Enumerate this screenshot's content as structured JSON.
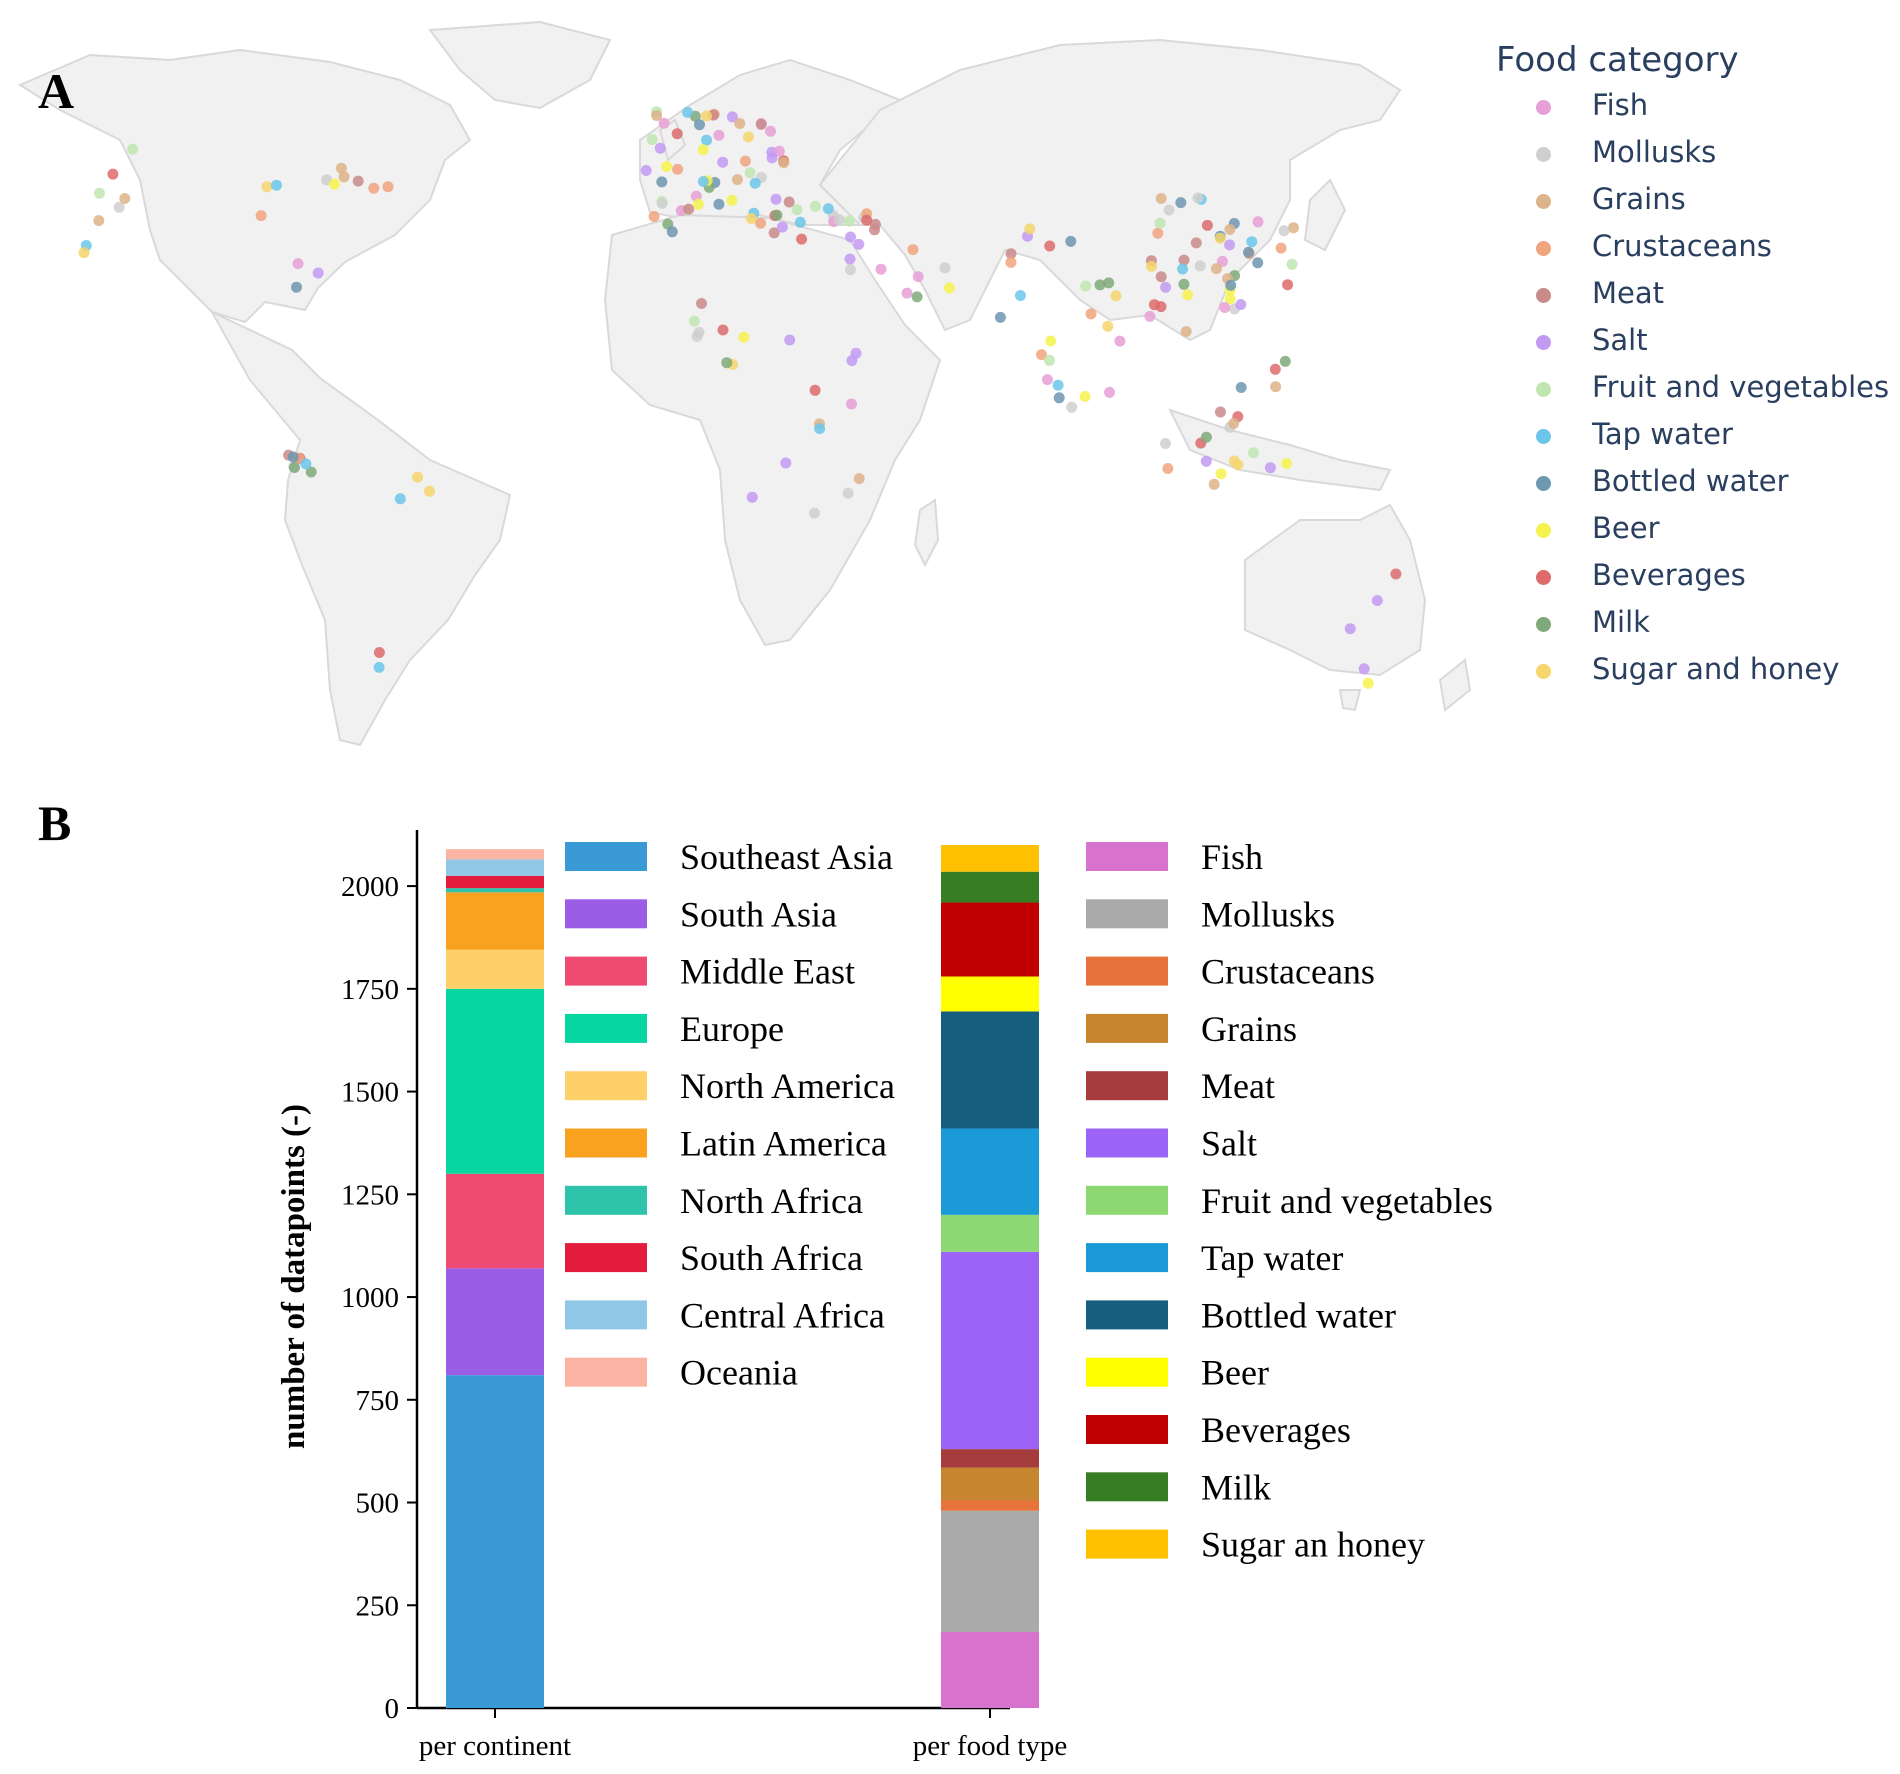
{
  "panel_a": {
    "letter": "A",
    "legend_title": "Food category",
    "categories": [
      {
        "name": "Fish",
        "color": "#e89fd6"
      },
      {
        "name": "Mollusks",
        "color": "#cfcfcf"
      },
      {
        "name": "Grains",
        "color": "#ddb389"
      },
      {
        "name": "Crustaceans",
        "color": "#f0a57f"
      },
      {
        "name": "Meat",
        "color": "#c98a8a"
      },
      {
        "name": "Salt",
        "color": "#c29af2"
      },
      {
        "name": "Fruit and vegetables",
        "color": "#bfe6b1"
      },
      {
        "name": "Tap water",
        "color": "#6cc6ea"
      },
      {
        "name": "Bottled water",
        "color": "#6e97b0"
      },
      {
        "name": "Beer",
        "color": "#f6f24e"
      },
      {
        "name": "Beverages",
        "color": "#dd6b6b"
      },
      {
        "name": "Milk",
        "color": "#7fa97a"
      },
      {
        "name": "Sugar and honey",
        "color": "#f6d56c"
      }
    ]
  },
  "panel_b": {
    "letter": "B"
  },
  "chart_data": {
    "type": "bar",
    "stacked": true,
    "ylabel": "number of datapoints (-)",
    "ylim": [
      0,
      2100
    ],
    "yticks": [
      0,
      250,
      500,
      750,
      1000,
      1250,
      1500,
      1750,
      2000
    ],
    "bars": [
      {
        "category": "per continent",
        "series": [
          {
            "name": "Southeast Asia",
            "value": 810,
            "color": "#3a9ad6"
          },
          {
            "name": "South Asia",
            "value": 260,
            "color": "#9b5ce6"
          },
          {
            "name": "Middle East",
            "value": 230,
            "color": "#ee4a72"
          },
          {
            "name": "Europe",
            "value": 450,
            "color": "#06d6a0"
          },
          {
            "name": "North America",
            "value": 95,
            "color": "#fdd06a"
          },
          {
            "name": "Latin America",
            "value": 140,
            "color": "#f8a21f"
          },
          {
            "name": "North Africa",
            "value": 10,
            "color": "#2ec4ac"
          },
          {
            "name": "South Africa",
            "value": 30,
            "color": "#e31b3c"
          },
          {
            "name": "Central Africa",
            "value": 40,
            "color": "#90c7e6"
          },
          {
            "name": "Oceania",
            "value": 25,
            "color": "#fbb4a4"
          }
        ]
      },
      {
        "category": "per food type",
        "series": [
          {
            "name": "Fish",
            "value": 185,
            "color": "#d873cd"
          },
          {
            "name": "Mollusks",
            "value": 295,
            "color": "#aaaaaa"
          },
          {
            "name": "Crustaceans",
            "value": 25,
            "color": "#e8733a"
          },
          {
            "name": "Grains",
            "value": 80,
            "color": "#c8852f"
          },
          {
            "name": "Meat",
            "value": 45,
            "color": "#a63c3c"
          },
          {
            "name": "Salt",
            "value": 480,
            "color": "#9b63f6"
          },
          {
            "name": "Fruit and vegetables",
            "value": 90,
            "color": "#8ed873"
          },
          {
            "name": "Tap water",
            "value": 210,
            "color": "#1a9bd7"
          },
          {
            "name": "Bottled water",
            "value": 285,
            "color": "#155e7e"
          },
          {
            "name": "Beer",
            "value": 85,
            "color": "#ffff00"
          },
          {
            "name": "Beverages",
            "value": 180,
            "color": "#c00000"
          },
          {
            "name": "Milk",
            "value": 75,
            "color": "#367d23"
          },
          {
            "name": "Sugar an honey",
            "value": 65,
            "color": "#ffc000"
          }
        ]
      }
    ]
  }
}
